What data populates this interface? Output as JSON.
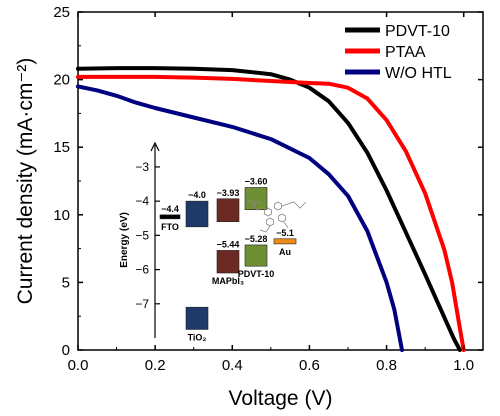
{
  "chart_data": {
    "type": "line",
    "xlabel": "Voltage (V)",
    "ylabel": "Current density (mA·cm⁻²)",
    "xlim": [
      0.0,
      1.05
    ],
    "ylim": [
      0,
      25
    ],
    "xticks": [
      "0.0",
      "0.2",
      "0.4",
      "0.6",
      "0.8",
      "1.0"
    ],
    "yticks": [
      "0",
      "5",
      "10",
      "15",
      "20",
      "25"
    ],
    "legend_position": "top-right",
    "series": [
      {
        "name": "PDVT-10",
        "color": "#000000",
        "points": [
          [
            0.0,
            20.8
          ],
          [
            0.1,
            20.85
          ],
          [
            0.2,
            20.85
          ],
          [
            0.3,
            20.8
          ],
          [
            0.4,
            20.7
          ],
          [
            0.5,
            20.4
          ],
          [
            0.55,
            20.0
          ],
          [
            0.6,
            19.4
          ],
          [
            0.65,
            18.4
          ],
          [
            0.7,
            16.8
          ],
          [
            0.75,
            14.6
          ],
          [
            0.8,
            11.8
          ],
          [
            0.85,
            8.7
          ],
          [
            0.9,
            5.6
          ],
          [
            0.95,
            2.4
          ],
          [
            0.975,
            0.8
          ],
          [
            0.99,
            0.0
          ]
        ]
      },
      {
        "name": "PTAA",
        "color": "#ff0000",
        "points": [
          [
            0.0,
            20.2
          ],
          [
            0.1,
            20.2
          ],
          [
            0.2,
            20.2
          ],
          [
            0.3,
            20.15
          ],
          [
            0.4,
            20.05
          ],
          [
            0.5,
            19.9
          ],
          [
            0.6,
            19.75
          ],
          [
            0.65,
            19.7
          ],
          [
            0.7,
            19.4
          ],
          [
            0.75,
            18.6
          ],
          [
            0.8,
            17.0
          ],
          [
            0.85,
            14.7
          ],
          [
            0.9,
            11.6
          ],
          [
            0.95,
            7.4
          ],
          [
            0.97,
            5.0
          ],
          [
            0.99,
            1.6
          ],
          [
            1.0,
            0.0
          ]
        ]
      },
      {
        "name": "W/O HTL",
        "color": "#000080",
        "points": [
          [
            0.0,
            19.5
          ],
          [
            0.05,
            19.2
          ],
          [
            0.1,
            18.8
          ],
          [
            0.15,
            18.3
          ],
          [
            0.2,
            17.9
          ],
          [
            0.3,
            17.2
          ],
          [
            0.4,
            16.5
          ],
          [
            0.5,
            15.6
          ],
          [
            0.6,
            14.2
          ],
          [
            0.65,
            13.0
          ],
          [
            0.7,
            11.4
          ],
          [
            0.75,
            8.8
          ],
          [
            0.8,
            5.0
          ],
          [
            0.82,
            3.0
          ],
          [
            0.84,
            0.0
          ]
        ]
      }
    ]
  },
  "inset": {
    "axis_title": "Energy (eV)",
    "ticks": [
      "-3",
      "-4",
      "-5",
      "-6",
      "-7"
    ],
    "ylim": [
      -8.0,
      -2.3
    ],
    "levels": [
      {
        "label": "FTO",
        "color": "#000000",
        "top": -4.4,
        "bottom": -4.5,
        "top_text": "−4.4",
        "bottom_text": ""
      },
      {
        "label": "TiO₂",
        "color": "#1f3a68",
        "top": -4.0,
        "bottom": -7.7,
        "top_text": "−4.0",
        "bottom_text": ""
      },
      {
        "label": "MAPbI₃",
        "color": "#6b2a24",
        "top": -3.93,
        "bottom": -5.44,
        "top_text": "−3.93",
        "bottom_text": "−5.44"
      },
      {
        "label": "PDVT-10",
        "color": "#6f8f35",
        "top": -3.6,
        "bottom": -5.28,
        "top_text": "−3.60",
        "bottom_text": "−5.28"
      },
      {
        "label": "Au",
        "color": "#f08a1a",
        "top": -5.1,
        "bottom": -5.25,
        "top_text": "−5.1",
        "bottom_text": ""
      }
    ]
  }
}
